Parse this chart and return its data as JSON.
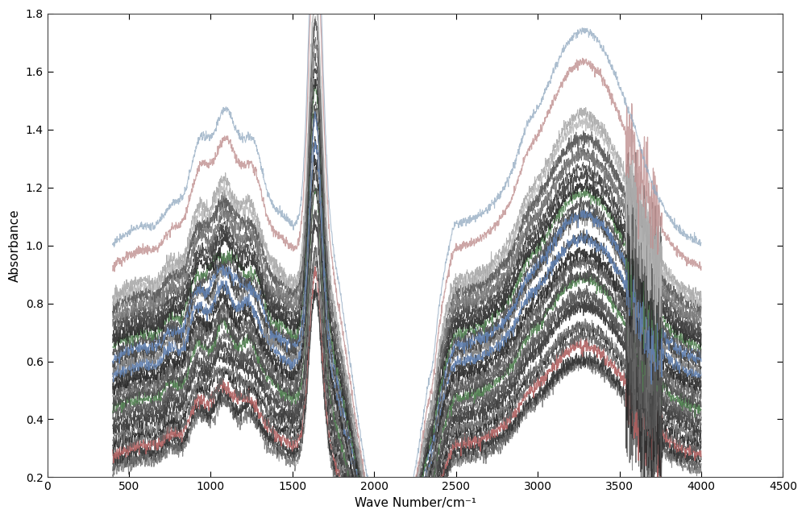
{
  "xlabel": "Wave Number/cm⁻¹",
  "ylabel": "Absorbance",
  "xlim": [
    0,
    4500
  ],
  "ylim": [
    0.2,
    1.8
  ],
  "xticks": [
    0,
    500,
    1000,
    1500,
    2000,
    2500,
    3000,
    3500,
    4000,
    4500
  ],
  "yticks": [
    0.2,
    0.4,
    0.6,
    0.8,
    1.0,
    1.2,
    1.4,
    1.6,
    1.8
  ],
  "background_color": "#ffffff",
  "plot_bg_color": "#ffffff",
  "figsize": [
    10.0,
    6.43
  ],
  "dpi": 100,
  "n_spectra": 32,
  "x_start": 400,
  "x_end": 4000,
  "seed": 42
}
